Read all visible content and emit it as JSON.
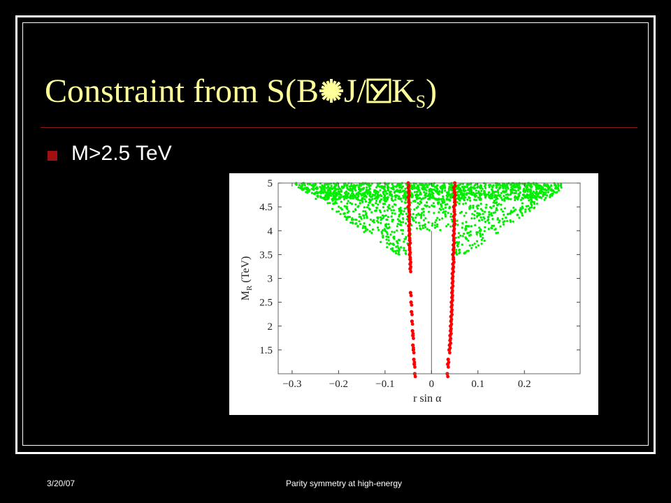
{
  "slide": {
    "title_text": "Constraint from S(B",
    "title_j": "J/",
    "title_k": "K",
    "title_k_sub": "S",
    "title_close": ")",
    "title_glyph_1": "arrow-burst-icon",
    "title_glyph_2": "psi-box-icon",
    "bullet": "M>2.5 TeV",
    "colors": {
      "title": "#ffff99",
      "bullet": "#a01010",
      "rule": "#8a1a1a"
    }
  },
  "footer": {
    "date": "3/20/07",
    "caption": "Parity symmetry at high-energy"
  },
  "chart_data": {
    "type": "scatter",
    "xlabel": "r sin α",
    "ylabel": "M",
    "ylabel_sub": "R",
    "ylabel_unit": "(TeV)",
    "xlim": [
      -0.33,
      0.32
    ],
    "ylim": [
      1.0,
      5.0
    ],
    "x_ticks": [
      -0.3,
      -0.2,
      -0.1,
      0,
      0.1,
      0.2
    ],
    "x_tick_labels": [
      "−0.3",
      "−0.2",
      "−0.1",
      "0",
      "0.1",
      "0.2"
    ],
    "y_ticks": [
      1.5,
      2,
      2.5,
      3,
      3.5,
      4,
      4.5,
      5
    ],
    "y_tick_labels": [
      "1.5",
      "2",
      "2.5",
      "3",
      "3.5",
      "4",
      "4.5",
      "5"
    ],
    "series": [
      {
        "color": "#00ee00",
        "region": "allowed-scan",
        "bounds": {
          "y_min_center": 4.0,
          "y_max": 5.0,
          "x_min": -0.3,
          "x_max": 0.28,
          "low_edge_y": 3.5
        }
      },
      {
        "color": "#ff0000",
        "points": [
          [
            -0.05,
            5.0
          ],
          [
            -0.05,
            4.9
          ],
          [
            -0.049,
            4.8
          ],
          [
            -0.05,
            4.7
          ],
          [
            -0.049,
            4.6
          ],
          [
            -0.05,
            4.5
          ],
          [
            -0.048,
            4.4
          ],
          [
            -0.049,
            4.3
          ],
          [
            -0.048,
            4.2
          ],
          [
            -0.049,
            4.1
          ],
          [
            -0.048,
            4.0
          ],
          [
            -0.048,
            3.9
          ],
          [
            -0.047,
            3.8
          ],
          [
            -0.048,
            3.7
          ],
          [
            -0.047,
            3.6
          ],
          [
            -0.047,
            3.5
          ],
          [
            -0.046,
            3.4
          ],
          [
            -0.046,
            3.3
          ],
          [
            -0.046,
            3.2
          ],
          [
            -0.045,
            2.7
          ],
          [
            -0.044,
            2.5
          ],
          [
            -0.043,
            2.3
          ],
          [
            -0.042,
            2.1
          ],
          [
            -0.041,
            1.9
          ],
          [
            -0.04,
            1.8
          ],
          [
            -0.04,
            1.6
          ],
          [
            -0.039,
            1.5
          ],
          [
            -0.038,
            1.3
          ],
          [
            -0.037,
            1.2
          ],
          [
            -0.036,
            1.0
          ],
          [
            0.05,
            5.0
          ],
          [
            0.048,
            4.9
          ],
          [
            0.05,
            4.8
          ],
          [
            0.049,
            4.7
          ],
          [
            0.05,
            4.6
          ],
          [
            0.048,
            4.5
          ],
          [
            0.049,
            4.4
          ],
          [
            0.048,
            4.3
          ],
          [
            0.049,
            4.2
          ],
          [
            0.048,
            4.1
          ],
          [
            0.048,
            4.0
          ],
          [
            0.047,
            3.9
          ],
          [
            0.048,
            3.8
          ],
          [
            0.047,
            3.7
          ],
          [
            0.047,
            3.6
          ],
          [
            0.046,
            3.5
          ],
          [
            0.047,
            3.4
          ],
          [
            0.046,
            3.3
          ],
          [
            0.046,
            3.2
          ],
          [
            0.045,
            3.1
          ],
          [
            0.045,
            3.0
          ],
          [
            0.045,
            2.9
          ],
          [
            0.044,
            2.8
          ],
          [
            0.044,
            2.7
          ],
          [
            0.044,
            2.6
          ],
          [
            0.043,
            2.5
          ],
          [
            0.043,
            2.4
          ],
          [
            0.043,
            2.3
          ],
          [
            0.042,
            2.2
          ],
          [
            0.042,
            2.1
          ],
          [
            0.041,
            2.0
          ],
          [
            0.041,
            1.9
          ],
          [
            0.04,
            1.8
          ],
          [
            0.04,
            1.7
          ],
          [
            0.039,
            1.6
          ],
          [
            0.038,
            1.5
          ],
          [
            0.036,
            1.3
          ],
          [
            0.035,
            1.2
          ],
          [
            0.034,
            1.0
          ]
        ]
      }
    ]
  }
}
